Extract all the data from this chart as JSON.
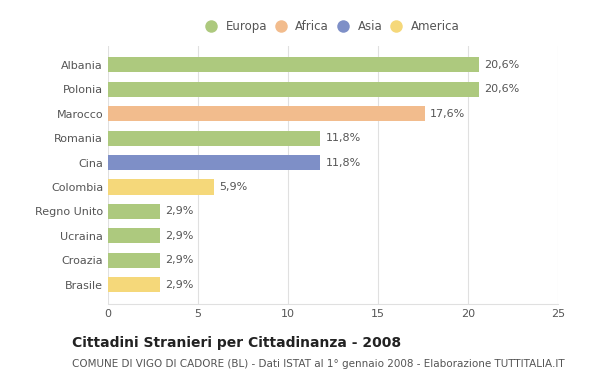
{
  "categories": [
    "Albania",
    "Polonia",
    "Marocco",
    "Romania",
    "Cina",
    "Colombia",
    "Regno Unito",
    "Ucraina",
    "Croazia",
    "Brasile"
  ],
  "values": [
    20.6,
    20.6,
    17.6,
    11.8,
    11.8,
    5.9,
    2.9,
    2.9,
    2.9,
    2.9
  ],
  "labels": [
    "20,6%",
    "20,6%",
    "17,6%",
    "11,8%",
    "11,8%",
    "5,9%",
    "2,9%",
    "2,9%",
    "2,9%",
    "2,9%"
  ],
  "colors": [
    "#adc97e",
    "#adc97e",
    "#f2bc8d",
    "#adc97e",
    "#7e8fc7",
    "#f5d87a",
    "#adc97e",
    "#adc97e",
    "#adc97e",
    "#f5d87a"
  ],
  "legend_labels": [
    "Europa",
    "Africa",
    "Asia",
    "America"
  ],
  "legend_colors": [
    "#adc97e",
    "#f2bc8d",
    "#7e8fc7",
    "#f5d87a"
  ],
  "title": "Cittadini Stranieri per Cittadinanza - 2008",
  "subtitle": "COMUNE DI VIGO DI CADORE (BL) - Dati ISTAT al 1° gennaio 2008 - Elaborazione TUTTITALIA.IT",
  "xlim": [
    0,
    25
  ],
  "xticks": [
    0,
    5,
    10,
    15,
    20,
    25
  ],
  "background_color": "#ffffff",
  "grid_color": "#e0e0e0",
  "text_color": "#555555",
  "title_fontsize": 10,
  "subtitle_fontsize": 7.5,
  "label_fontsize": 8,
  "tick_fontsize": 8,
  "legend_fontsize": 8.5
}
